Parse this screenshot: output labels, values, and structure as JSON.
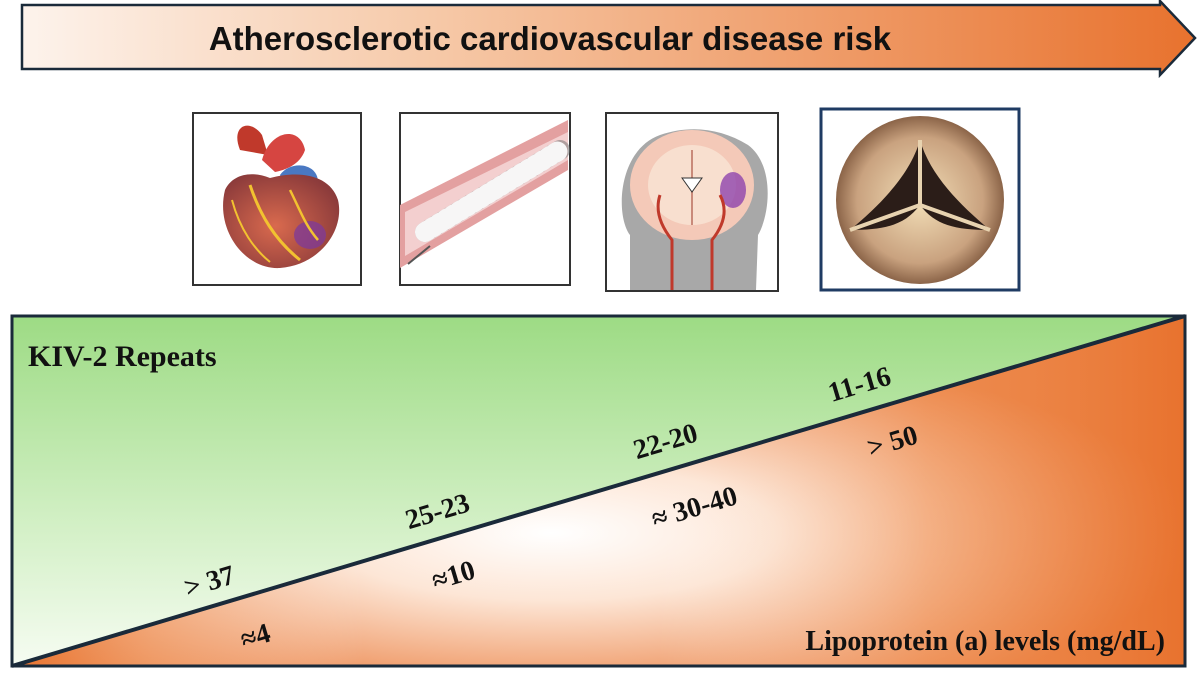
{
  "header": {
    "arrow_label": "Atherosclerotic cardiovascular disease risk",
    "gradient_start": "#fdf3ec",
    "gradient_end": "#e8722e"
  },
  "images": [
    {
      "name": "heart-illustration"
    },
    {
      "name": "stent-artery-illustration"
    },
    {
      "name": "brain-stroke-illustration"
    },
    {
      "name": "aortic-valve-stenosis-illustration"
    }
  ],
  "diagram": {
    "upper_label": "KIV-2 Repeats",
    "lower_label": "Lipoprotein (a) levels (mg/dL)",
    "green_color": "#a9df93",
    "orange_color": "#e8722e",
    "kiv2_repeats": [
      {
        "text": "> 37"
      },
      {
        "text": "25-23"
      },
      {
        "text": "22-20"
      },
      {
        "text": "11-16"
      }
    ],
    "lpa_levels": [
      {
        "text": "≈4"
      },
      {
        "text": "≈10"
      },
      {
        "text": "≈ 30-40"
      },
      {
        "text": "> 50"
      }
    ]
  }
}
